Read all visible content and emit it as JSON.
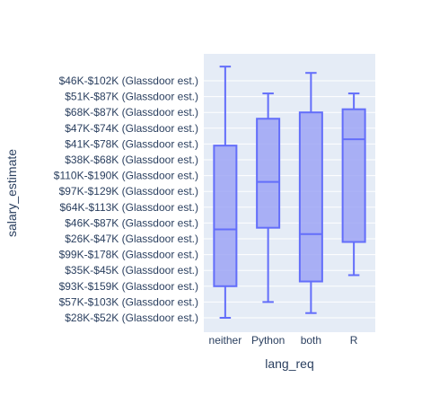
{
  "chart_data": {
    "type": "box",
    "xlabel": "lang_req",
    "ylabel": "salary_estimate",
    "categories": [
      "neither",
      "Python",
      "both",
      "R"
    ],
    "y_categories": [
      "$28K-$52K (Glassdoor est.)",
      "$57K-$103K (Glassdoor est.)",
      "$93K-$159K (Glassdoor est.)",
      "$35K-$45K (Glassdoor est.)",
      "$99K-$178K (Glassdoor est.)",
      "$26K-$47K (Glassdoor est.)",
      "$46K-$87K (Glassdoor est.)",
      "$64K-$113K (Glassdoor est.)",
      "$97K-$129K (Glassdoor est.)",
      "$110K-$190K (Glassdoor est.)",
      "$38K-$68K (Glassdoor est.)",
      "$41K-$78K (Glassdoor est.)",
      "$47K-$74K (Glassdoor est.)",
      "$68K-$87K (Glassdoor est.)",
      "$51K-$87K (Glassdoor est.)",
      "$46K-$102K (Glassdoor est.)"
    ],
    "boxes": [
      {
        "category": "neither",
        "min": 0,
        "q1": 2.0,
        "median": 5.6,
        "q3": 10.9,
        "max": 15.9
      },
      {
        "category": "Python",
        "min": 1.0,
        "q1": 5.7,
        "median": 8.6,
        "q3": 12.6,
        "max": 14.2
      },
      {
        "category": "both",
        "min": 0.3,
        "q1": 2.3,
        "median": 5.3,
        "q3": 13.0,
        "max": 15.5
      },
      {
        "category": "R",
        "min": 2.7,
        "q1": 4.8,
        "median": 11.3,
        "q3": 13.2,
        "max": 14.2
      }
    ],
    "colors": {
      "plot_bg": "#e5ecf6",
      "grid": "#ffffff",
      "box_line": "#636efa",
      "box_fill": "#9da4f4",
      "text": "#2a3f5f"
    }
  }
}
